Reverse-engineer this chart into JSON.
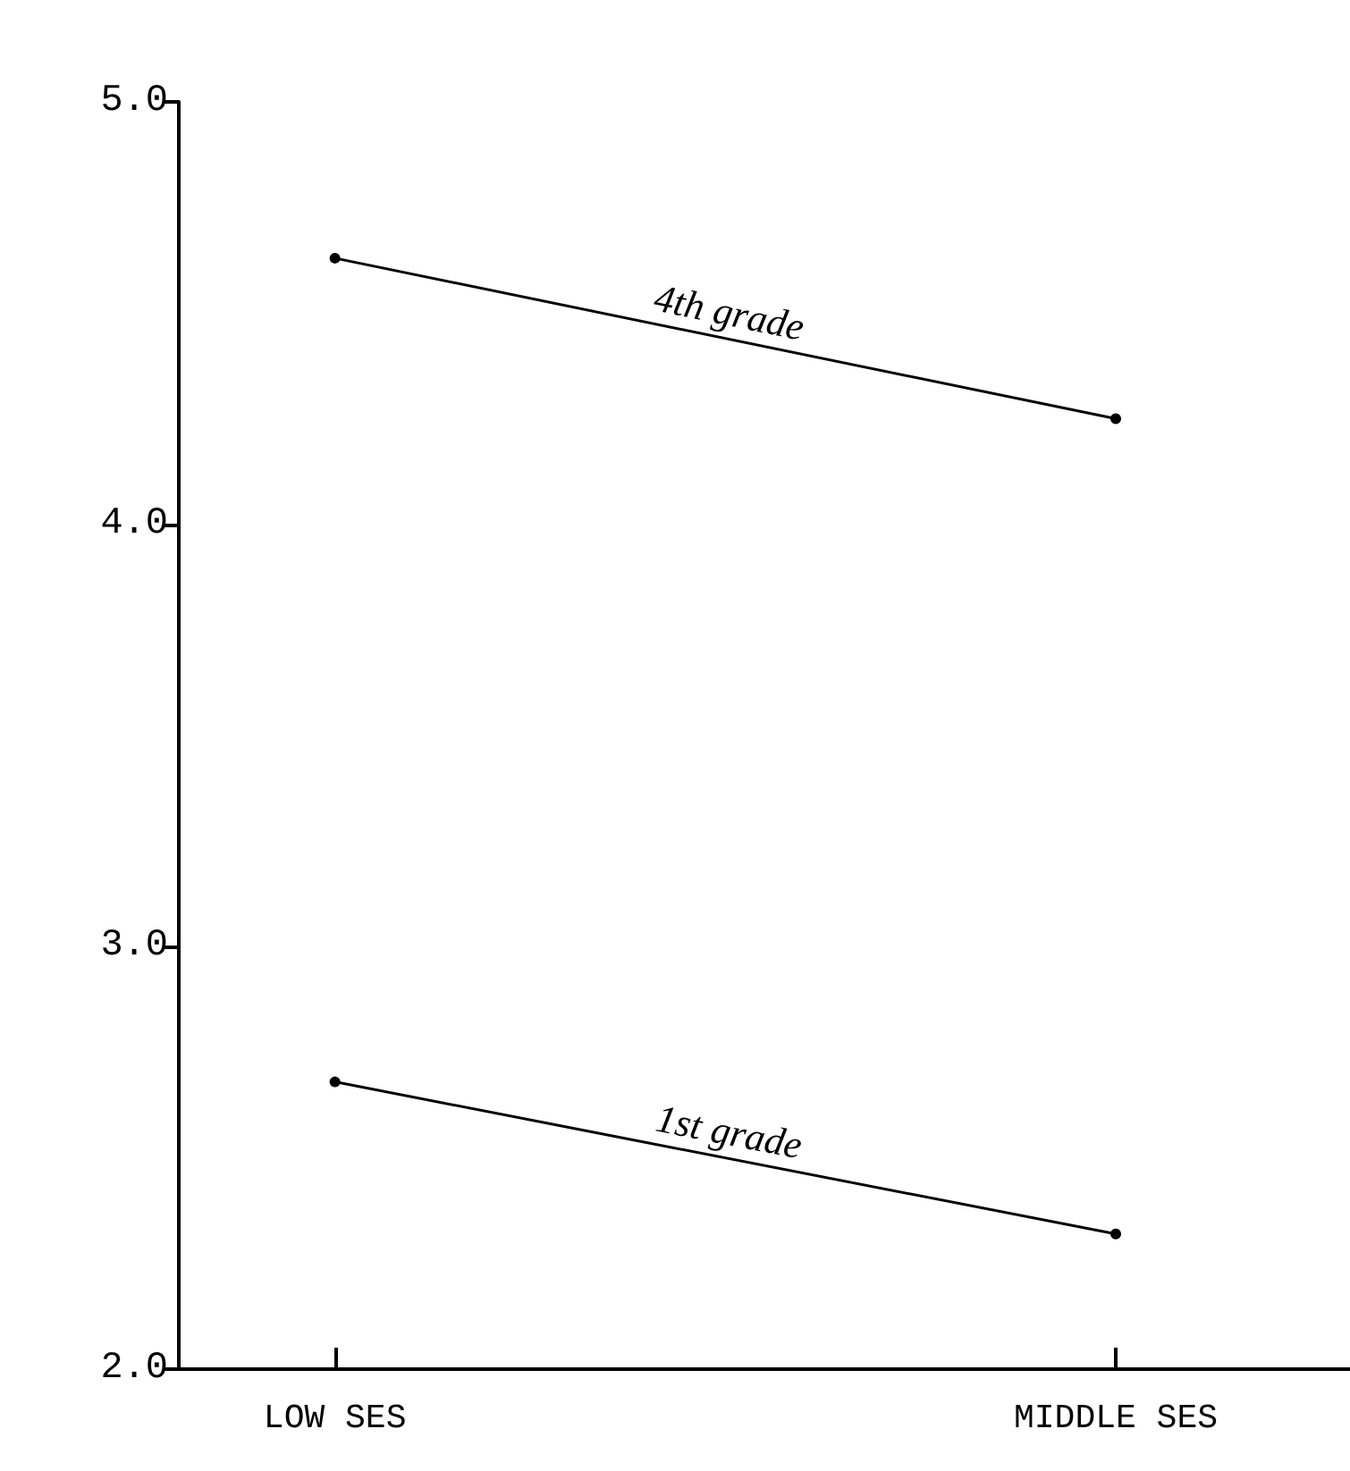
{
  "chart_data": {
    "type": "line",
    "categories": [
      "LOW SES",
      "MIDDLE SES"
    ],
    "series": [
      {
        "name": "4th grade",
        "color": "#000000",
        "values": [
          4.63,
          4.25
        ]
      },
      {
        "name": "1st grade",
        "color": "#000000",
        "values": [
          2.68,
          2.32
        ]
      }
    ],
    "ylim": [
      2.0,
      5.0
    ],
    "yticks": [
      {
        "value": 2,
        "label": "2.0"
      },
      {
        "value": 3,
        "label": "3.0"
      },
      {
        "value": 4,
        "label": "4.0"
      },
      {
        "value": 5,
        "label": "5.0"
      }
    ],
    "grid": false,
    "legend": false,
    "marker": "circle",
    "line_style": "solid"
  }
}
